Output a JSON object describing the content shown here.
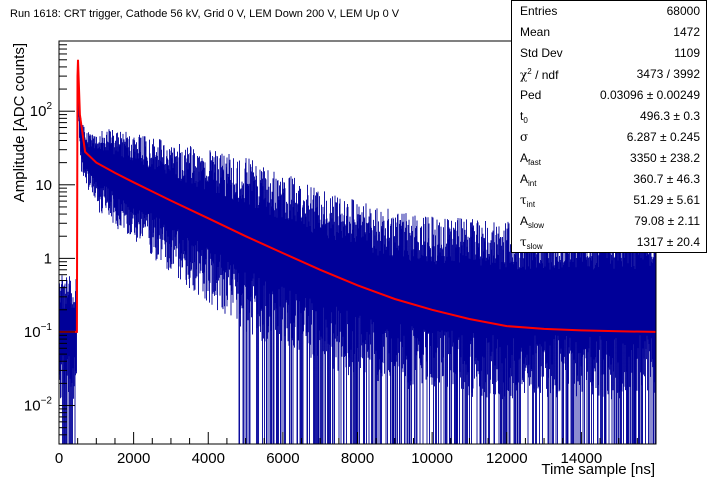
{
  "chart_data": {
    "type": "line",
    "title": "Run 1618: CRT trigger, Cathode 56 kV, Grid 0 V, LEM Down 200 V, LEM Up 0 V",
    "xlabel": "Time sample [ns]",
    "ylabel": "Amplitude [ADC counts]",
    "xlim": [
      0,
      16000
    ],
    "ylim": [
      0.003,
      900
    ],
    "yscale": "log",
    "x_ticks": [
      "0",
      "2000",
      "4000",
      "6000",
      "8000",
      "10000",
      "12000",
      "14000"
    ],
    "y_ticks": [
      {
        "value": 0.01,
        "mantissa": "10",
        "exp": "−2"
      },
      {
        "value": 0.1,
        "mantissa": "10",
        "exp": "−1"
      },
      {
        "value": 1,
        "mantissa": "1",
        "exp": ""
      },
      {
        "value": 10,
        "mantissa": "10",
        "exp": ""
      },
      {
        "value": 100,
        "mantissa": "10",
        "exp": "2"
      }
    ],
    "grid": false,
    "series": [
      {
        "name": "",
        "style": "histogram",
        "color": "#000099",
        "approx_envelope": {
          "x": [
            0,
            480,
            500,
            520,
            600,
            800,
            1500,
            2500,
            3500,
            4500,
            5500,
            6500,
            7500,
            8500,
            10000,
            12000,
            14000,
            16000
          ],
          "median": [
            0.1,
            0.1,
            400,
            180,
            35,
            22,
            14,
            8,
            4.5,
            2.6,
            1.5,
            0.9,
            0.6,
            0.4,
            0.3,
            0.25,
            0.25,
            0.25
          ]
        }
      },
      {
        "name": "",
        "style": "fit",
        "color": "#ff0000",
        "x": [
          0,
          480,
          496,
          510,
          560,
          700,
          1000,
          1500,
          2000,
          2500,
          3000,
          4000,
          5000,
          6000,
          7000,
          8000,
          9000,
          10000,
          11000,
          12000,
          13000,
          14000,
          15000,
          16000
        ],
        "y": [
          0.1,
          0.1,
          300,
          500,
          90,
          28,
          20,
          14.5,
          10.8,
          8.1,
          6.1,
          3.5,
          2.0,
          1.18,
          0.7,
          0.43,
          0.28,
          0.2,
          0.15,
          0.12,
          0.11,
          0.105,
          0.102,
          0.1
        ]
      }
    ],
    "stats_box": [
      {
        "name": "Entries",
        "value": "68000"
      },
      {
        "name": "Mean",
        "value": "1472"
      },
      {
        "name": "Std Dev",
        "value": "1109"
      },
      {
        "name": "χ² / ndf",
        "value": "3473 / 3992"
      },
      {
        "name": "Ped",
        "value": "0.03096 ± 0.00249"
      },
      {
        "name": "t0",
        "value": "496.3 ± 0.3"
      },
      {
        "name": "σ",
        "value": "6.287 ± 0.245"
      },
      {
        "name": "A_fast",
        "value": "3350 ± 238.2"
      },
      {
        "name": "A_int",
        "value": "360.7 ± 46.3"
      },
      {
        "name": "τ_int",
        "value": "51.29 ± 5.61"
      },
      {
        "name": "A_slow",
        "value": "79.08 ± 2.11"
      },
      {
        "name": "τ_slow",
        "value": "1317 ± 20.4"
      }
    ],
    "stats_labels": {
      "entries": "Entries",
      "mean": "Mean",
      "stddev": "Std Dev",
      "chi2_sym": "χ",
      "chi2_sup": "2",
      "chi2_rest": " / ndf",
      "ped": "Ped",
      "t_sym": "t",
      "t_sub": "0",
      "sigma": "σ",
      "A_sym": "A",
      "fast_sub": "fast",
      "int_sub": "int",
      "tau_sym": "τ",
      "slow_sub": "slow"
    }
  }
}
